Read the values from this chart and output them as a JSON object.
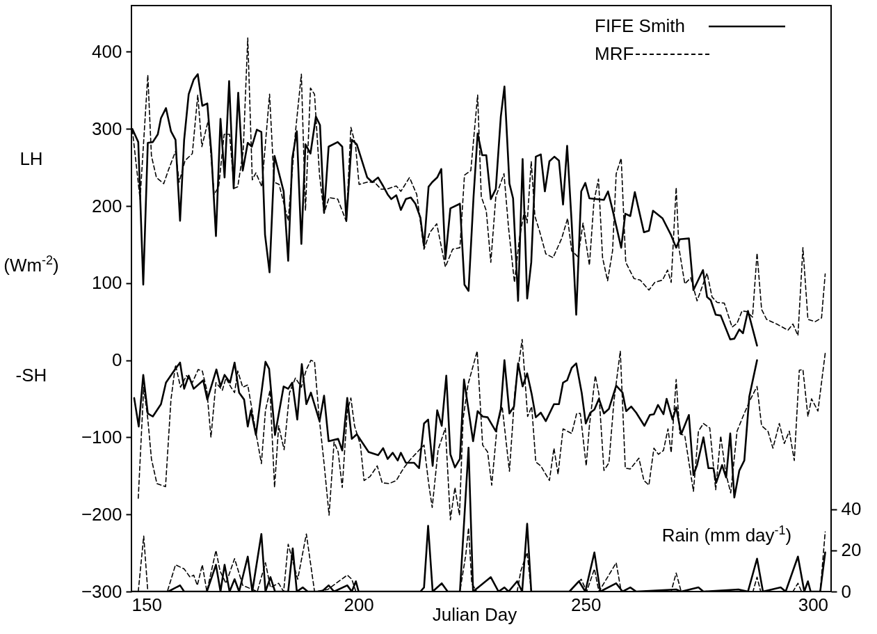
{
  "chart_data": {
    "type": "line",
    "xlabel": "Julian Day",
    "ylabel": "(Wm$^{-2}$)",
    "y2label": "Rain (mm day$^{-1}$)",
    "annotations": [
      "LH",
      "-SH"
    ],
    "xlim": [
      150,
      304
    ],
    "xticks": [
      150,
      200,
      250,
      300
    ],
    "ylim": [
      -300,
      460
    ],
    "yticks": [
      -300,
      -200,
      -100,
      0,
      100,
      200,
      300,
      400
    ],
    "y2lim": [
      0,
      285
    ],
    "y2ticks": [
      0,
      20,
      40
    ],
    "legend": "top right",
    "series": [
      {
        "name": "FIFE Smith",
        "color": "#000000",
        "line_style": "solid",
        "x": [
          150.2,
          151.5,
          152.6,
          153.6,
          154.7,
          155.8,
          156.5,
          157.6,
          158.7,
          159.7,
          160.7,
          161.6,
          162.6,
          163.7,
          164.6,
          165.6,
          166.7,
          167.6,
          168.6,
          169.6,
          170.5,
          171.5,
          172.5,
          173.5,
          174.5,
          175.6,
          176.5,
          177.6,
          178.6,
          179.4,
          180.4,
          181.5,
          183.5,
          184.5,
          185.4,
          186.4,
          187.4,
          188.3,
          189.4,
          190.6,
          191.5,
          192.4,
          193.4,
          195.4,
          196.4,
          197.3,
          198.5,
          199.6,
          201.9,
          203,
          204.3,
          205.4,
          206.4,
          207.2,
          208.3,
          209.3,
          210.4,
          211.5,
          212.5,
          213.6,
          214.4,
          215.4,
          216.2,
          217.3,
          218.2,
          219.1,
          220.2,
          222.3,
          223.3,
          224.2,
          225.3,
          226.2,
          227.2,
          228.1,
          229.1,
          230.2,
          231.3,
          232.1,
          233.2,
          234.0,
          235.1,
          236.1,
          237.1,
          238.0,
          239,
          240.1,
          241,
          242,
          243.1,
          244.1,
          245,
          245.9,
          246.9,
          247.9,
          249,
          249.9,
          250.8,
          254,
          254.9,
          255.9,
          257.8,
          258.7,
          259.8,
          260.8,
          262.8,
          263.9,
          264.8,
          266.9,
          268.8,
          269.9,
          270.7,
          272.7,
          273.7,
          275.8,
          276.7,
          277.5,
          278.6,
          279.7,
          281.8,
          282.7,
          283.8,
          284.6,
          285.7,
          287.7
        ],
        "values": [
          300,
          283,
          98,
          282,
          283,
          293,
          314,
          327,
          297,
          286,
          181,
          286,
          345,
          364,
          371,
          330,
          333,
          268,
          161,
          313,
          237,
          362,
          223,
          347,
          246,
          282,
          277,
          299,
          296,
          163,
          114,
          265,
          219,
          129,
          262,
          297,
          151,
          280,
          268,
          316,
          305,
          191,
          277,
          283,
          277,
          181,
          286,
          280,
          237,
          231,
          237,
          226,
          215,
          209,
          214,
          195,
          209,
          211,
          203,
          185,
          148,
          225,
          231,
          237,
          248,
          131,
          197,
          203,
          98,
          90,
          212,
          294,
          266,
          266,
          209,
          222,
          316,
          355,
          229,
          210,
          77,
          261,
          80,
          127,
          264,
          267,
          219,
          258,
          264,
          259,
          202,
          278,
          178,
          59,
          219,
          230,
          210,
          208,
          219,
          195,
          146,
          190,
          187,
          218,
          166,
          168,
          194,
          184,
          162,
          146,
          157,
          158,
          91,
          117,
          82,
          78,
          59,
          58,
          27,
          28,
          40,
          35,
          64,
          19
        ]
      },
      {
        "name": "MRF",
        "color": "#000000",
        "line_style": "dashed",
        "x": [
          150.2,
          151.9,
          153.6,
          154.4,
          155.5,
          157.1,
          158.1,
          159.7,
          160.5,
          161.8,
          163.4,
          164.6,
          165.5,
          166.9,
          168.2,
          169.2,
          170.4,
          171.6,
          172.6,
          173.4,
          174.6,
          175.6,
          176.6,
          177.4,
          178.7,
          180.4,
          181.4,
          182.5,
          184.5,
          186.1,
          187.4,
          188.3,
          189.4,
          190.3,
          191.4,
          192.4,
          193.5,
          195.4,
          197.3,
          198.3,
          199.3,
          200.1,
          201.9,
          203.5,
          204.9,
          206.2,
          208.3,
          209.3,
          211.2,
          212.8,
          214.4,
          215.7,
          217.2,
          219.1,
          220.7,
          222.3,
          223.3,
          224.7,
          226.2,
          227,
          228.1,
          229.1,
          230.2,
          232,
          233,
          234.3,
          235.4,
          236.5,
          237.1,
          238,
          238.8,
          239.8,
          241.2,
          242.8,
          244.7,
          246,
          246.9,
          248.3,
          249.4,
          250.8,
          251.8,
          252.8,
          253.7,
          254.8,
          255.9,
          256.7,
          257.8,
          258.8,
          260.6,
          262,
          263.9,
          265.2,
          266.9,
          268,
          268.8,
          269.9,
          270.5,
          271.8,
          273.1,
          274.5,
          276.7,
          277.8,
          278.9,
          280.5,
          282.2,
          283.3,
          284.4,
          285.5,
          286.7,
          287.7,
          288.7,
          289.8,
          292,
          294.5,
          295.6,
          296.7,
          297.8,
          298.9,
          300.5,
          301.9,
          302.7
        ],
        "values": [
          299,
          209,
          370,
          265,
          237,
          229,
          246,
          271,
          231,
          259,
          268,
          344,
          277,
          311,
          215,
          225,
          293,
          293,
          223,
          225,
          271,
          418,
          234,
          243,
          225,
          345,
          231,
          228,
          181,
          296,
          371,
          194,
          353,
          345,
          240,
          191,
          211,
          209,
          180,
          302,
          280,
          228,
          231,
          231,
          222,
          222,
          226,
          219,
          237,
          215,
          144,
          166,
          177,
          121,
          144,
          146,
          240,
          246,
          344,
          212,
          194,
          127,
          212,
          242,
          172,
          101,
          158,
          194,
          178,
          258,
          187,
          168,
          138,
          133,
          158,
          184,
          142,
          134,
          178,
          123,
          206,
          235,
          133,
          103,
          142,
          242,
          262,
          127,
          106,
          104,
          91,
          101,
          104,
          117,
          101,
          224,
          146,
          99,
          107,
          77,
          113,
          82,
          75,
          74,
          43,
          48,
          64,
          63,
          56,
          139,
          66,
          53,
          47,
          39,
          47,
          32,
          146,
          53,
          50,
          55,
          112
        ]
      },
      {
        "color": "#000000",
        "line_style": "solid",
        "x": [
          150.6,
          151.6,
          152.6,
          153.6,
          154.7,
          156.5,
          157.6,
          159.7,
          160.7,
          161.6,
          162.6,
          163.7,
          165.8,
          166.7,
          168.7,
          169.6,
          170.5,
          171.7,
          172.7,
          173.7,
          174.8,
          175.6,
          176.3,
          177.4,
          179.5,
          180.3,
          181.6,
          183.5,
          184.5,
          185.4,
          186.5,
          187.5,
          188.5,
          189.5,
          191.4,
          192.4,
          193.4,
          195.5,
          196.4,
          197.5,
          198.5,
          199.6,
          202.2,
          204.3,
          205.4,
          206.4,
          207.5,
          208.6,
          209.3,
          210.4,
          212.2,
          213.3,
          214.4,
          215.3,
          216.3,
          217.3,
          218.3,
          219.3,
          220.2,
          221.2,
          222.3,
          223.2,
          225.2,
          226.2,
          227.3,
          228.4,
          230.2,
          231.3,
          232.1,
          233.2,
          234.2,
          235.1,
          236.1,
          237.1,
          238.1,
          239,
          240.1,
          241.2,
          243,
          244.1,
          245,
          245.9,
          246.9,
          247.9,
          249.1,
          250,
          251,
          251.9,
          252.9,
          254,
          255.1,
          256.7,
          258.1,
          258.9,
          260,
          261.1,
          262.9,
          264.1,
          265,
          265.9,
          267.1,
          267.8,
          269.1,
          269.9,
          271,
          272.7,
          273.7,
          274.5,
          275.9,
          277,
          278.1,
          278.7,
          280,
          280.9,
          281.8,
          282.7,
          283.8,
          284.9,
          286,
          287.7
        ],
        "values": [
          -49,
          -86,
          -19,
          -69,
          -73,
          -57,
          -29,
          -11,
          -3,
          -37,
          -20,
          -37,
          -26,
          -51,
          -12,
          -34,
          -19,
          -29,
          -3,
          -42,
          -51,
          -86,
          -65,
          -97,
          -2,
          -11,
          -97,
          -34,
          -37,
          -29,
          -77,
          -5,
          -57,
          -42,
          -79,
          -46,
          -105,
          -102,
          -117,
          -49,
          -102,
          -96,
          -119,
          -123,
          -114,
          -128,
          -120,
          -130,
          -120,
          -133,
          -133,
          -140,
          -82,
          -77,
          -137,
          -65,
          -85,
          -20,
          -122,
          -139,
          -128,
          -25,
          -105,
          -66,
          -73,
          -74,
          -92,
          -63,
          0,
          -69,
          -60,
          -4,
          -34,
          -17,
          -44,
          -74,
          -68,
          -79,
          -57,
          -57,
          -29,
          -26,
          -10,
          -4,
          -42,
          -82,
          -68,
          -64,
          -50,
          -69,
          -63,
          -33,
          -42,
          -66,
          -60,
          -68,
          -85,
          -71,
          -70,
          -58,
          -70,
          -50,
          -77,
          -61,
          -96,
          -71,
          -149,
          -136,
          -100,
          -140,
          -140,
          -159,
          -136,
          -152,
          -95,
          -178,
          -143,
          -130,
          -47,
          0
        ]
      },
      {
        "color": "#000000",
        "line_style": "dashed",
        "x": [
          151.5,
          152.7,
          153.6,
          154.4,
          155.6,
          157.5,
          158.7,
          159.7,
          160.8,
          162.1,
          163.4,
          164.7,
          165.6,
          166.6,
          167.5,
          168.6,
          170,
          170.8,
          171.9,
          172.7,
          173.4,
          174.5,
          175.6,
          177.4,
          178.6,
          179.5,
          180.5,
          181.5,
          182.4,
          183.6,
          184.8,
          186.1,
          187.4,
          188.5,
          189.5,
          190.3,
          191.3,
          192.4,
          193.5,
          194.6,
          195.5,
          196.4,
          197.5,
          198.3,
          199.1,
          200.4,
          201.2,
          202.5,
          204.1,
          205.2,
          206.7,
          208.3,
          209.9,
          211.5,
          214.4,
          215.4,
          216.2,
          217.5,
          219.1,
          220.2,
          221.2,
          222.2,
          223,
          224.1,
          226.1,
          227.3,
          228.4,
          229.3,
          230.5,
          231.6,
          233.2,
          234.4,
          236,
          237.2,
          238.1,
          239,
          240.1,
          242,
          243,
          243.9,
          245,
          246.9,
          248,
          248.8,
          250.1,
          250.8,
          252.1,
          252.9,
          254,
          255.1,
          256.2,
          257.6,
          258.7,
          259.8,
          261.7,
          262.8,
          263.9,
          265,
          266,
          267.1,
          268.1,
          268.8,
          269.9,
          270.7,
          271.8,
          273.7,
          274.8,
          275.9,
          277.3,
          278.6,
          279.7,
          280.8,
          281.9,
          283.3,
          284.6,
          286.3,
          287.7,
          288.7,
          290.1,
          291.2,
          292.6,
          293.7,
          294.8,
          295.9,
          297,
          297.8,
          298.9,
          299.7,
          301.1,
          302.7
        ],
        "values": [
          -179,
          -35,
          -76,
          -128,
          -160,
          -164,
          -51,
          -6,
          -35,
          -20,
          -29,
          -12,
          -14,
          -39,
          -100,
          -29,
          -39,
          -23,
          -35,
          -42,
          -14,
          -35,
          -32,
          -94,
          -134,
          -65,
          -39,
          -165,
          -85,
          -116,
          -42,
          -23,
          -35,
          -12,
          0,
          -2,
          -73,
          -134,
          -201,
          -106,
          -119,
          -165,
          -66,
          -49,
          -85,
          -110,
          -156,
          -151,
          -137,
          -159,
          -160,
          -156,
          -140,
          -128,
          -110,
          -159,
          -191,
          -116,
          -88,
          -207,
          -165,
          -201,
          -76,
          -31,
          12,
          -110,
          -119,
          -162,
          -85,
          -60,
          -144,
          -41,
          27,
          -73,
          -60,
          -132,
          -137,
          -156,
          -114,
          -148,
          -89,
          -95,
          -69,
          -69,
          -137,
          -85,
          -20,
          -44,
          -143,
          -133,
          -53,
          12,
          -140,
          -141,
          -127,
          -156,
          -162,
          -114,
          -122,
          -117,
          -89,
          -120,
          -25,
          -95,
          -98,
          -170,
          -92,
          -82,
          -88,
          -168,
          -98,
          -146,
          -172,
          -92,
          -73,
          -50,
          -34,
          -85,
          -92,
          -114,
          -82,
          -108,
          -92,
          -130,
          -13,
          -12,
          -73,
          -50,
          -66,
          9
        ]
      },
      {
        "color": "#000000",
        "line_style": "solid",
        "axis": "y2",
        "x": [
          150,
          158.1,
          160.7,
          161.6,
          166.6,
          168.6,
          169.6,
          170.5,
          171.6,
          172.7,
          173.7,
          175.6,
          176.6,
          178.6,
          179.5,
          180.6,
          181.6,
          184.5,
          185.5,
          186.4,
          187.7,
          188.8,
          191.9,
          193.4,
          194.6,
          197.5,
          198.5,
          199.4,
          200,
          213.6,
          214.4,
          215.3,
          216.3,
          218.3,
          219.6,
          222.3,
          224.2,
          225.2,
          229.1,
          230.8,
          232.1,
          233,
          234.9,
          236,
          237.1,
          238,
          246.4,
          248.5,
          249.9,
          251.9,
          253.2,
          256.7,
          258.1,
          259.8,
          261.1,
          269.9,
          271,
          274.8,
          275.9,
          283.6,
          285.7,
          287.7,
          289,
          292.9,
          294,
          296.7,
          298.1,
          298.9,
          299.5,
          301.6,
          302.7
        ],
        "values": [
          0,
          0,
          3,
          0,
          0,
          13,
          0,
          13,
          0,
          6,
          0,
          17,
          0,
          28,
          0,
          7,
          0,
          0,
          21,
          0,
          2,
          0,
          0,
          3,
          0,
          3,
          0,
          5,
          0,
          0,
          2,
          32,
          0,
          4,
          0,
          0,
          70,
          0,
          7,
          0,
          2,
          0,
          5,
          0,
          33,
          0,
          0,
          5,
          0,
          19,
          0,
          4,
          0,
          2,
          0,
          1,
          0,
          2,
          0,
          1,
          0,
          16,
          0,
          2,
          0,
          17,
          0,
          5,
          0,
          0,
          19
        ]
      },
      {
        "color": "#000000",
        "line_style": "dashed",
        "axis": "y2",
        "x": [
          151.5,
          152.7,
          153.6,
          157.9,
          159.7,
          161.6,
          162.9,
          163.7,
          164.5,
          165.6,
          166.6,
          168.6,
          169.5,
          170.8,
          172.7,
          174.5,
          177.7,
          179.5,
          180.6,
          182.4,
          183.5,
          184.5,
          186.6,
          188.5,
          190.3,
          193.2,
          197.5,
          198.5,
          199.4,
          214.1,
          222.3,
          223.6,
          224.2,
          224.9,
          226,
          234.9,
          235.7,
          237.1,
          238,
          246.4,
          249,
          250.2,
          251.9,
          252.9,
          256.7,
          257.8,
          268.8,
          269.9,
          271,
          286.8,
          287.7,
          288.5,
          295.6,
          296.7,
          297.5,
          301.6,
          302.7
        ],
        "values": [
          0,
          27,
          0,
          0,
          13,
          11,
          7,
          8,
          3,
          13,
          0,
          20,
          10,
          4,
          16,
          3,
          0,
          14,
          2,
          4,
          0,
          23,
          6,
          28,
          0,
          1,
          8,
          6,
          0,
          0,
          0,
          18,
          31,
          4,
          0,
          0,
          10,
          19,
          0,
          0,
          6,
          0,
          11,
          0,
          14,
          0,
          0,
          9,
          0,
          0,
          7,
          0,
          0,
          4,
          0,
          0,
          29
        ]
      }
    ]
  }
}
